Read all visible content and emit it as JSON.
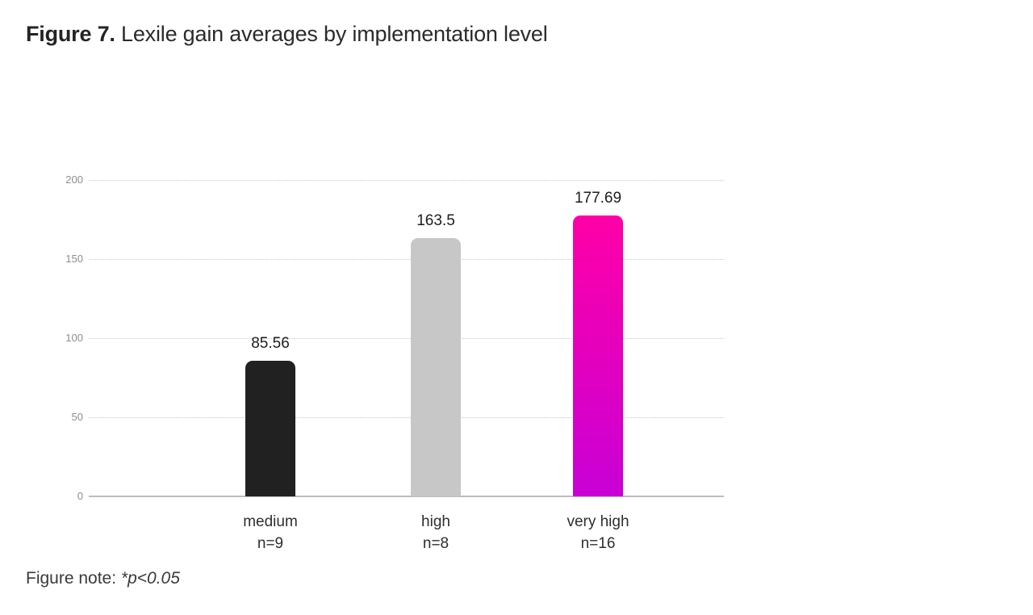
{
  "figure": {
    "title_prefix": "Figure 7.",
    "title_rest": " Lexile gain averages by implementation level",
    "note_prefix": "Figure note: ",
    "note_italic": "*p<0.05"
  },
  "colors": {
    "bar_medium": "#212121",
    "bar_high": "#c7c7c7",
    "bar_very_high_gradient_top": "#ff00a6",
    "bar_very_high_gradient_bottom": "#c800d6",
    "gridline": "#c7c7c7",
    "axis_line": "#bdbdbd",
    "tick_label": "#8d8d8d",
    "text_dark": "#2b2b2b"
  },
  "chart_data": {
    "type": "bar",
    "title": "Lexile gain averages by implementation level",
    "categories": [
      "medium",
      "high",
      "very high"
    ],
    "category_sublabels": [
      "n=9",
      "n=8",
      "n=16"
    ],
    "values": [
      85.56,
      163.5,
      177.69
    ],
    "value_labels": [
      "85.56",
      "163.5",
      "177.69"
    ],
    "xlabel": "",
    "ylabel": "",
    "ylim": [
      0,
      200
    ],
    "yticks": [
      0,
      50,
      100,
      150,
      200
    ],
    "grid": "horizontal-dotted",
    "legend": "none",
    "bars": [
      {
        "category": "medium",
        "sublabel": "n=9",
        "value": 85.56,
        "label": "85.56",
        "color": "#212121"
      },
      {
        "category": "high",
        "sublabel": "n=8",
        "value": 163.5,
        "label": "163.5",
        "color": "#c7c7c7"
      },
      {
        "category": "very high",
        "sublabel": "n=16",
        "value": 177.69,
        "label": "177.69",
        "color": "gradient",
        "gradient_top": "#ff00a6",
        "gradient_bottom": "#c800d6"
      }
    ]
  }
}
